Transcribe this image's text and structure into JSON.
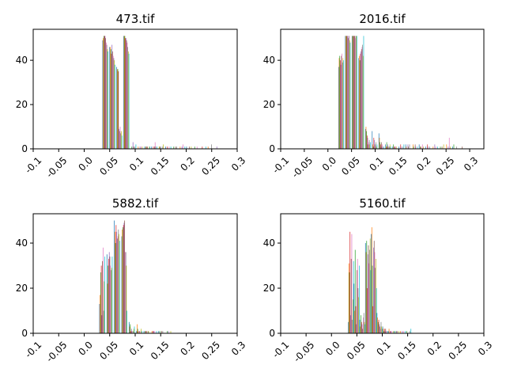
{
  "chart_data": [
    {
      "type": "bar",
      "title": "473.tif",
      "xlabel": "",
      "ylabel": "",
      "xlim": [
        -0.1,
        0.3
      ],
      "ylim": [
        0,
        54
      ],
      "xticks": [
        "-0.1",
        "-0.05",
        "0.0",
        "0.05",
        "0.1",
        "0.15",
        "0.2",
        "0.25",
        "0.3"
      ],
      "xtick_values": [
        -0.1,
        -0.05,
        0.0,
        0.05,
        0.1,
        0.15,
        0.2,
        0.25,
        0.3
      ],
      "yticks": [
        "0",
        "20",
        "40"
      ],
      "ytick_values": [
        0,
        20,
        40
      ],
      "grid": false,
      "bins": [
        {
          "x": 0.0357,
          "values": [
            49,
            50,
            51,
            51,
            51,
            50,
            48,
            47,
            45,
            44
          ]
        },
        {
          "x": 0.0494,
          "values": [
            46,
            46,
            45,
            43,
            47,
            44,
            42,
            41,
            40,
            38
          ]
        },
        {
          "x": 0.0631,
          "values": [
            37,
            36,
            36,
            35,
            9,
            8,
            10,
            7,
            8,
            6
          ]
        },
        {
          "x": 0.0768,
          "values": [
            51,
            51,
            51,
            50,
            50,
            49,
            48,
            46,
            44,
            43
          ]
        },
        {
          "x": 0.0905,
          "values": [
            0,
            0,
            1,
            0,
            3,
            1,
            0,
            1,
            0,
            2
          ]
        },
        {
          "x": 0.1042,
          "values": [
            0,
            1,
            0,
            0,
            1,
            0,
            1,
            0,
            1,
            0
          ]
        },
        {
          "x": 0.1179,
          "values": [
            1,
            0,
            1,
            1,
            0,
            1,
            0,
            0,
            1,
            1
          ]
        },
        {
          "x": 0.1316,
          "values": [
            1,
            0,
            0,
            1,
            0,
            1,
            3,
            1,
            0,
            1
          ]
        },
        {
          "x": 0.1453,
          "values": [
            0,
            1,
            1,
            0,
            1,
            0,
            0,
            1,
            2,
            0
          ]
        },
        {
          "x": 0.159,
          "values": [
            1,
            0,
            0,
            1,
            0,
            0,
            1,
            0,
            0,
            1
          ]
        },
        {
          "x": 0.1727,
          "values": [
            0,
            0,
            1,
            0,
            0,
            1,
            0,
            1,
            0,
            0
          ]
        },
        {
          "x": 0.1864,
          "values": [
            0,
            1,
            0,
            0,
            1,
            0,
            2,
            0,
            0,
            1
          ]
        },
        {
          "x": 0.2001,
          "values": [
            1,
            0,
            0,
            0,
            0,
            1,
            0,
            0,
            1,
            0
          ]
        },
        {
          "x": 0.2138,
          "values": [
            0,
            0,
            1,
            0,
            0,
            0,
            1,
            0,
            0,
            0
          ]
        },
        {
          "x": 0.2275,
          "values": [
            0,
            0,
            0,
            1,
            0,
            0,
            0,
            0,
            0,
            1
          ]
        },
        {
          "x": 0.2412,
          "values": [
            0,
            1,
            0,
            0,
            0,
            0,
            0,
            2,
            0,
            0
          ]
        },
        {
          "x": 0.2549,
          "values": [
            0,
            0,
            0,
            0,
            1,
            0,
            0,
            0,
            0,
            0
          ]
        }
      ]
    },
    {
      "type": "bar",
      "title": "2016.tif",
      "xlabel": "",
      "ylabel": "",
      "xlim": [
        -0.1,
        0.33
      ],
      "ylim": [
        0,
        54
      ],
      "xticks": [
        "-0.1",
        "-0.05",
        "0.0",
        "0.05",
        "0.1",
        "0.15",
        "0.2",
        "0.25",
        "0.3"
      ],
      "xtick_values": [
        -0.1,
        -0.05,
        0.0,
        0.05,
        0.1,
        0.15,
        0.2,
        0.25,
        0.3
      ],
      "yticks": [
        "0",
        "20",
        "40"
      ],
      "ytick_values": [
        0,
        20,
        40
      ],
      "grid": false,
      "bins": [
        {
          "x": 0.0221,
          "values": [
            37,
            41,
            42,
            40,
            38,
            42,
            43,
            39,
            41,
            40
          ]
        },
        {
          "x": 0.0363,
          "values": [
            51,
            51,
            51,
            51,
            51,
            50,
            51,
            51,
            49,
            48
          ]
        },
        {
          "x": 0.0505,
          "values": [
            51,
            51,
            51,
            51,
            51,
            51,
            50,
            51,
            51,
            51
          ]
        },
        {
          "x": 0.0647,
          "values": [
            41,
            42,
            40,
            43,
            44,
            45,
            46,
            47,
            42,
            51
          ]
        },
        {
          "x": 0.0789,
          "values": [
            9,
            10,
            8,
            6,
            5,
            2,
            3,
            4,
            2,
            3
          ]
        },
        {
          "x": 0.0931,
          "values": [
            8,
            2,
            1,
            5,
            4,
            2,
            1,
            3,
            1,
            2
          ]
        },
        {
          "x": 0.1073,
          "values": [
            7,
            5,
            3,
            2,
            1,
            3,
            2,
            1,
            0,
            1
          ]
        },
        {
          "x": 0.1215,
          "values": [
            2,
            1,
            3,
            1,
            2,
            1,
            0,
            1,
            2,
            1
          ]
        },
        {
          "x": 0.1357,
          "values": [
            1,
            0,
            2,
            1,
            0,
            1,
            1,
            0,
            1,
            0
          ]
        },
        {
          "x": 0.1499,
          "values": [
            1,
            0,
            0,
            2,
            1,
            0,
            0,
            1,
            0,
            2
          ]
        },
        {
          "x": 0.1641,
          "values": [
            2,
            1,
            0,
            0,
            2,
            1,
            0,
            2,
            0,
            0
          ]
        },
        {
          "x": 0.1783,
          "values": [
            0,
            2,
            1,
            0,
            0,
            2,
            1,
            0,
            0,
            1
          ]
        },
        {
          "x": 0.1925,
          "values": [
            2,
            0,
            1,
            1,
            0,
            0,
            2,
            0,
            1,
            0
          ]
        },
        {
          "x": 0.2067,
          "values": [
            1,
            0,
            0,
            2,
            1,
            0,
            0,
            1,
            0,
            0
          ]
        },
        {
          "x": 0.2209,
          "values": [
            0,
            1,
            0,
            0,
            2,
            0,
            1,
            0,
            0,
            1
          ]
        },
        {
          "x": 0.2351,
          "values": [
            0,
            0,
            1,
            0,
            0,
            1,
            0,
            0,
            2,
            0
          ]
        },
        {
          "x": 0.2493,
          "values": [
            0,
            2,
            0,
            0,
            1,
            0,
            5,
            0,
            1,
            0
          ]
        },
        {
          "x": 0.2635,
          "values": [
            1,
            0,
            2,
            0,
            0,
            0,
            0,
            1,
            0,
            0
          ]
        },
        {
          "x": 0.2777,
          "values": [
            0,
            0,
            0,
            0,
            0,
            1,
            0,
            0,
            0,
            0
          ]
        }
      ]
    },
    {
      "type": "bar",
      "title": "5882.tif",
      "xlabel": "",
      "ylabel": "",
      "xlim": [
        -0.1,
        0.3
      ],
      "ylim": [
        0,
        53
      ],
      "xticks": [
        "-0.1",
        "-0.05",
        "0.0",
        "0.05",
        "0.1",
        "0.15",
        "0.2",
        "0.25",
        "0.3"
      ],
      "xtick_values": [
        -0.1,
        -0.05,
        0.0,
        0.05,
        0.1,
        0.15,
        0.2,
        0.25,
        0.3
      ],
      "yticks": [
        "0",
        "20",
        "40"
      ],
      "ytick_values": [
        0,
        20,
        40
      ],
      "grid": false,
      "bins": [
        {
          "x": 0.0295,
          "values": [
            13,
            17,
            27,
            30,
            8,
            32,
            38,
            10,
            23,
            34
          ]
        },
        {
          "x": 0.044,
          "values": [
            35,
            22,
            30,
            33,
            36,
            34,
            30,
            28,
            29,
            34
          ]
        },
        {
          "x": 0.0585,
          "values": [
            50,
            45,
            40,
            48,
            45,
            42,
            43,
            46,
            44,
            41
          ]
        },
        {
          "x": 0.073,
          "values": [
            43,
            46,
            47,
            48,
            49,
            50,
            36,
            36,
            30,
            10
          ]
        },
        {
          "x": 0.0875,
          "values": [
            5,
            3,
            4,
            1,
            2,
            1,
            0,
            1,
            2,
            3
          ]
        },
        {
          "x": 0.102,
          "values": [
            1,
            4,
            2,
            1,
            0,
            1,
            1,
            0,
            2,
            1
          ]
        },
        {
          "x": 0.1165,
          "values": [
            1,
            0,
            1,
            1,
            0,
            1,
            0,
            1,
            1,
            0
          ]
        },
        {
          "x": 0.131,
          "values": [
            0,
            1,
            0,
            1,
            1,
            0,
            1,
            0,
            0,
            1
          ]
        },
        {
          "x": 0.1455,
          "values": [
            1,
            0,
            1,
            0,
            0,
            1,
            0,
            1,
            0,
            0
          ]
        },
        {
          "x": 0.16,
          "values": [
            0,
            0,
            1,
            0,
            1,
            0,
            0,
            0,
            1,
            0
          ]
        }
      ]
    },
    {
      "type": "bar",
      "title": "5160.tif",
      "xlabel": "",
      "ylabel": "",
      "xlim": [
        -0.1,
        0.3
      ],
      "ylim": [
        0,
        53
      ],
      "xticks": [
        "-0.1",
        "-0.05",
        "0.0",
        "0.05",
        "0.1",
        "0.15",
        "0.2",
        "0.25",
        "0.3"
      ],
      "xtick_values": [
        -0.1,
        -0.05,
        0.0,
        0.05,
        0.1,
        0.15,
        0.2,
        0.25,
        0.3
      ],
      "yticks": [
        "0",
        "20",
        "40"
      ],
      "ytick_values": [
        0,
        20,
        40
      ],
      "grid": false,
      "bins": [
        {
          "x": 0.0325,
          "values": [
            5,
            31,
            27,
            45,
            8,
            33,
            44,
            6,
            15,
            32
          ]
        },
        {
          "x": 0.0438,
          "values": [
            22,
            10,
            37,
            12,
            4,
            28,
            33,
            20,
            16,
            30
          ]
        },
        {
          "x": 0.0551,
          "values": [
            6,
            3,
            8,
            5,
            4,
            2,
            7,
            9,
            5,
            4
          ]
        },
        {
          "x": 0.0664,
          "values": [
            40,
            36,
            41,
            20,
            35,
            39,
            31,
            37,
            42,
            28
          ]
        },
        {
          "x": 0.0777,
          "values": [
            44,
            47,
            30,
            12,
            38,
            41,
            36,
            29,
            33,
            20
          ]
        },
        {
          "x": 0.089,
          "values": [
            9,
            7,
            5,
            6,
            4,
            3,
            2,
            5,
            3,
            2
          ]
        },
        {
          "x": 0.1003,
          "values": [
            3,
            2,
            1,
            2,
            1,
            2,
            1,
            1,
            0,
            1
          ]
        },
        {
          "x": 0.1116,
          "values": [
            1,
            2,
            0,
            1,
            1,
            0,
            1,
            0,
            1,
            0
          ]
        },
        {
          "x": 0.1229,
          "values": [
            1,
            0,
            1,
            0,
            1,
            1,
            0,
            0,
            1,
            0
          ]
        },
        {
          "x": 0.1342,
          "values": [
            0,
            1,
            0,
            0,
            1,
            0,
            1,
            0,
            0,
            1
          ]
        },
        {
          "x": 0.1455,
          "values": [
            0,
            0,
            1,
            0,
            0,
            0,
            0,
            1,
            0,
            2
          ]
        }
      ]
    }
  ],
  "series_colors": [
    "#1f77b4",
    "#ff7f0e",
    "#2ca02c",
    "#d62728",
    "#9467bd",
    "#8c564b",
    "#e377c2",
    "#7f7f7f",
    "#bcbd22",
    "#17becf"
  ]
}
